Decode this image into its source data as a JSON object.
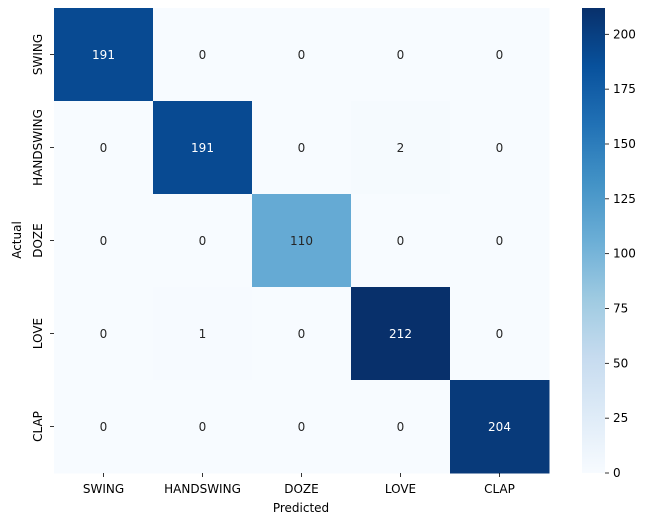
{
  "chart_data": {
    "type": "heatmap",
    "title": "",
    "xlabel": "Predicted",
    "ylabel": "Actual",
    "x_categories": [
      "SWING",
      "HANDSWING",
      "DOZE",
      "LOVE",
      "CLAP"
    ],
    "y_categories": [
      "SWING",
      "HANDSWING",
      "DOZE",
      "LOVE",
      "CLAP"
    ],
    "values": [
      [
        191,
        0,
        0,
        0,
        0
      ],
      [
        0,
        191,
        0,
        2,
        0
      ],
      [
        0,
        0,
        110,
        0,
        0
      ],
      [
        0,
        1,
        0,
        212,
        0
      ],
      [
        0,
        0,
        0,
        0,
        204
      ]
    ],
    "colormap": "Blues",
    "vmin": 0,
    "vmax": 212,
    "colorbar_ticks": [
      0,
      25,
      50,
      75,
      100,
      125,
      150,
      175,
      200
    ],
    "colors": {
      "low": "#f7fbff",
      "high": "#08306b"
    }
  }
}
